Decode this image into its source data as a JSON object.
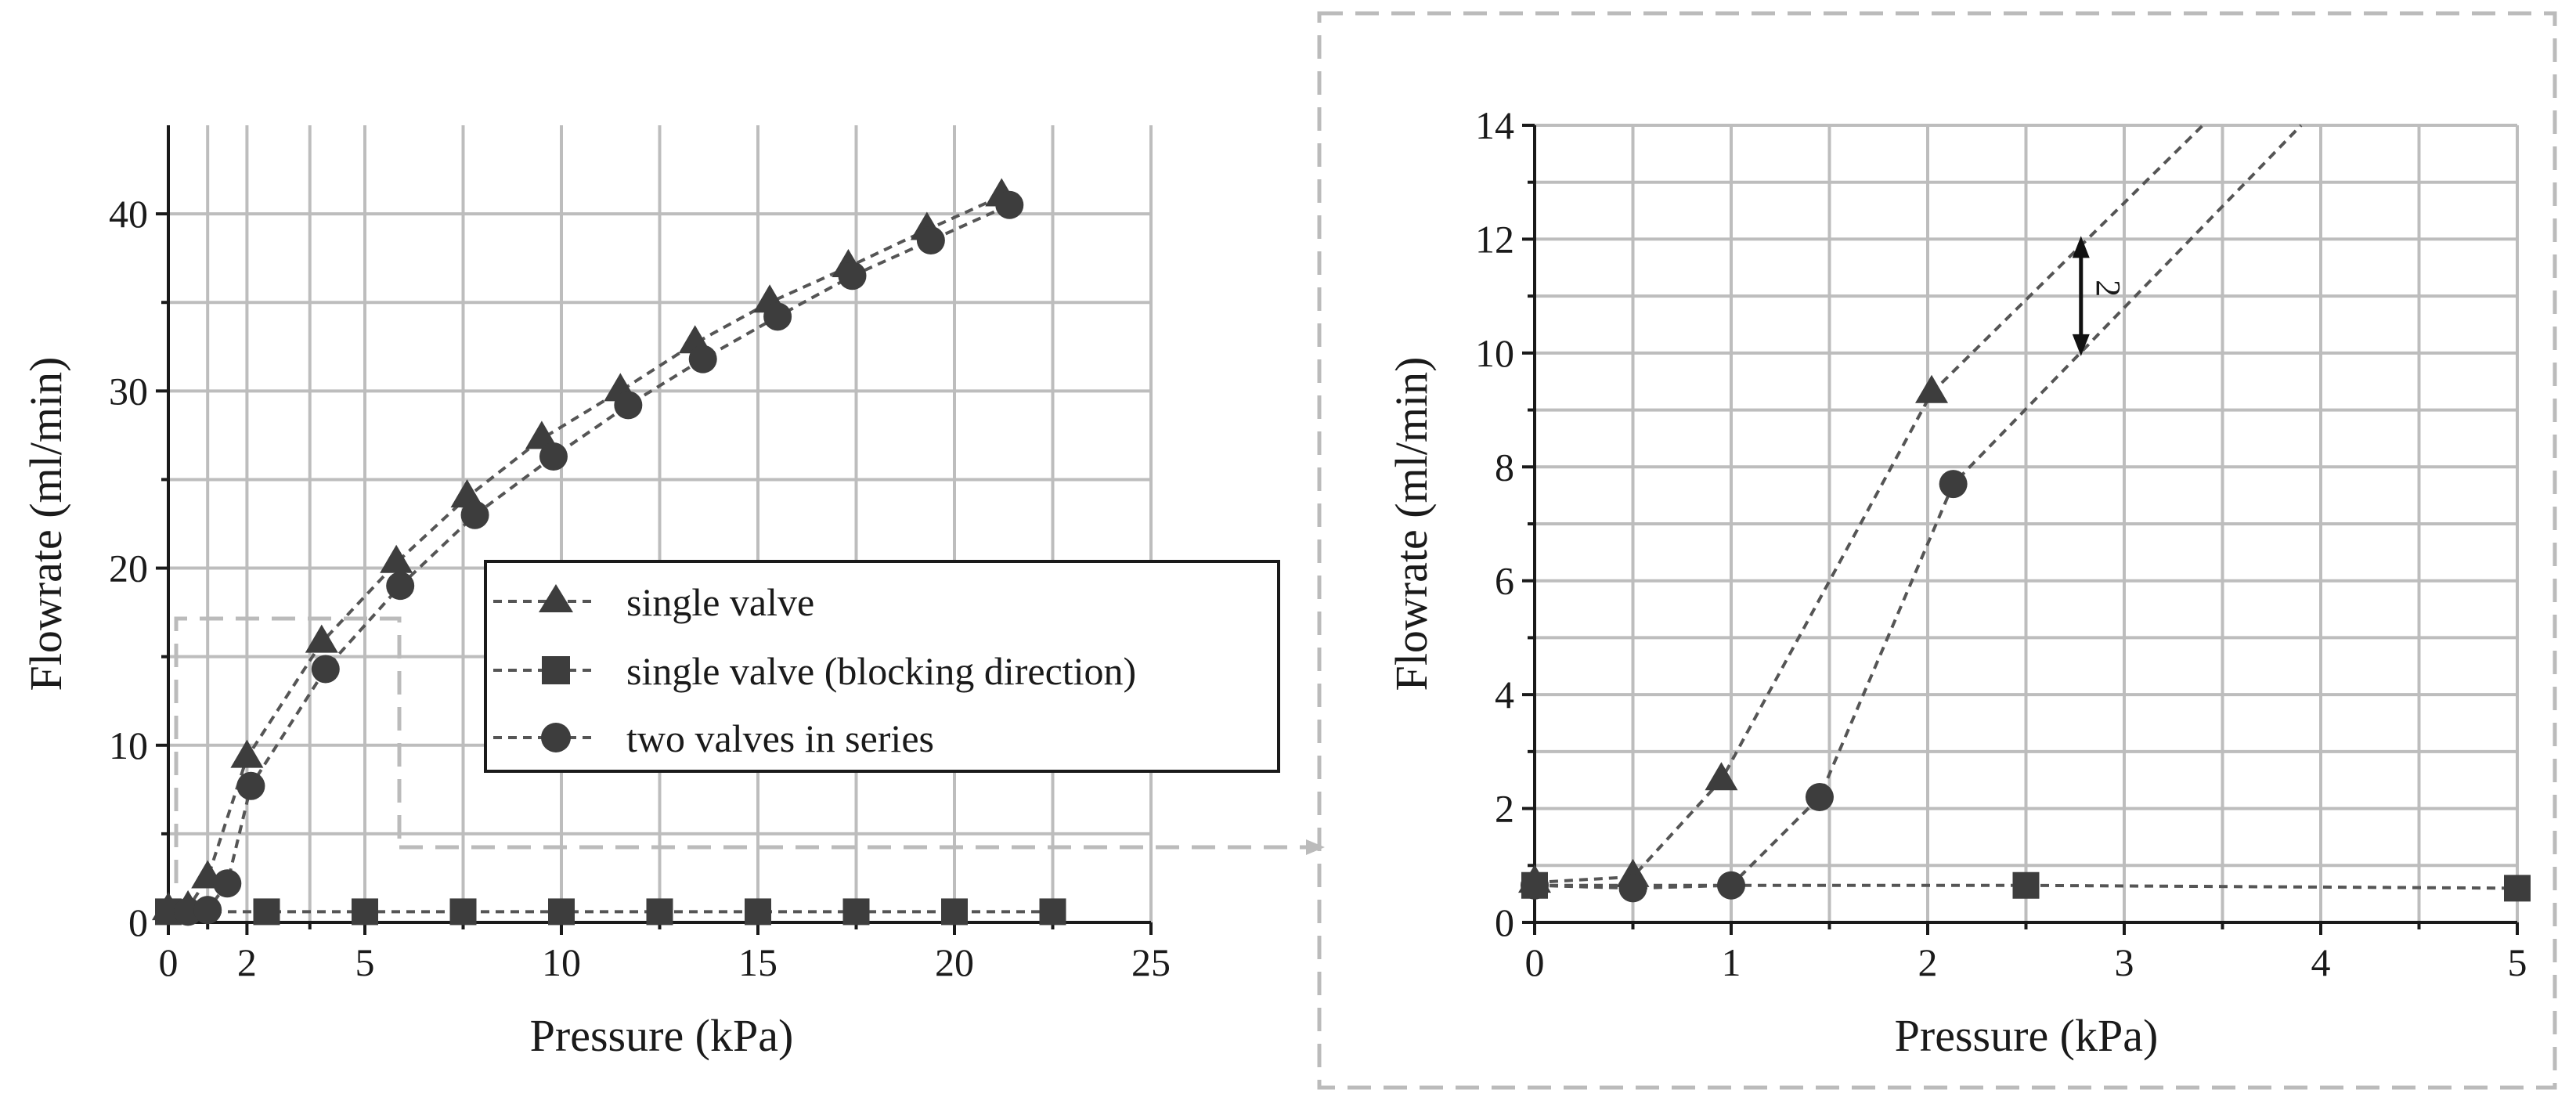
{
  "chart_data": [
    {
      "type": "line",
      "panel": "main",
      "title": "",
      "xlabel": "Pressure (kPa)",
      "ylabel": "Flowrate (ml/min)",
      "xlim": [
        0,
        25
      ],
      "ylim": [
        0,
        45
      ],
      "x_ticks": [
        0,
        1,
        2,
        3.6,
        5,
        7.5,
        10,
        12.5,
        15,
        17.5,
        20,
        22.5,
        25
      ],
      "x_tick_labels": [
        "0",
        "",
        "2",
        "",
        "5",
        "",
        "10",
        "",
        "15",
        "",
        "20",
        "",
        "25"
      ],
      "y_ticks": [
        0,
        5,
        10,
        15,
        20,
        25,
        30,
        35,
        40
      ],
      "y_tick_labels": [
        "0",
        "",
        "10",
        "",
        "20",
        "",
        "30",
        "",
        "40"
      ],
      "grid": true,
      "legend_position": "center-right",
      "series": [
        {
          "name": "single valve",
          "marker": "triangle",
          "x": [
            0,
            0.5,
            1,
            2,
            3.9,
            5.8,
            7.6,
            9.5,
            11.5,
            13.4,
            15.3,
            17.3,
            19.3,
            21.2
          ],
          "y": [
            0.7,
            0.8,
            2.5,
            9.3,
            15.8,
            20.3,
            24.0,
            27.3,
            30.0,
            32.7,
            35.0,
            37.0,
            39.1,
            41.0
          ]
        },
        {
          "name": "single valve (blocking direction)",
          "marker": "square",
          "x": [
            0,
            2.5,
            5,
            7.5,
            10,
            12.5,
            15,
            17.5,
            20,
            22.5
          ],
          "y": [
            0.6,
            0.6,
            0.6,
            0.6,
            0.6,
            0.6,
            0.6,
            0.6,
            0.6,
            0.6
          ]
        },
        {
          "name": "two valves in series",
          "marker": "circle",
          "x": [
            0.5,
            1,
            1.5,
            2.1,
            4.0,
            5.9,
            7.8,
            9.8,
            11.7,
            13.6,
            15.5,
            17.4,
            19.4,
            21.4
          ],
          "y": [
            0.6,
            0.7,
            2.2,
            7.7,
            14.3,
            19.0,
            23.0,
            26.3,
            29.2,
            31.8,
            34.2,
            36.5,
            38.5,
            40.5
          ]
        }
      ]
    },
    {
      "type": "line",
      "panel": "zoom",
      "title": "",
      "xlabel": "Pressure (kPa)",
      "ylabel": "Flowrate (ml/min)",
      "xlim": [
        0,
        5
      ],
      "ylim": [
        0,
        14
      ],
      "x_ticks": [
        0,
        0.5,
        1,
        1.5,
        2,
        2.5,
        3,
        3.5,
        4,
        4.5,
        5
      ],
      "x_tick_labels": [
        "0",
        "",
        "1",
        "",
        "2",
        "",
        "3",
        "",
        "4",
        "",
        "5"
      ],
      "y_ticks": [
        0,
        1,
        2,
        3,
        4,
        5,
        6,
        7,
        8,
        9,
        10,
        11,
        12,
        13,
        14
      ],
      "y_tick_labels": [
        "0",
        "",
        "2",
        "",
        "4",
        "",
        "6",
        "",
        "8",
        "",
        "10",
        "",
        "12",
        "",
        "14"
      ],
      "grid": true,
      "series": [
        {
          "name": "single valve",
          "marker": "triangle",
          "x": [
            0,
            0.5,
            0.95,
            2.02,
            3.4
          ],
          "y": [
            0.7,
            0.8,
            2.5,
            9.3,
            14.0
          ]
        },
        {
          "name": "single valve (blocking direction)",
          "marker": "square",
          "x": [
            0,
            2.5,
            5
          ],
          "y": [
            0.65,
            0.65,
            0.6
          ]
        },
        {
          "name": "two valves in series",
          "marker": "circle",
          "x": [
            0,
            0.5,
            1,
            1.45,
            2.13,
            3.9
          ],
          "y": [
            0.65,
            0.6,
            0.65,
            2.2,
            7.7,
            14.0
          ]
        }
      ],
      "annotations": [
        {
          "text": "2",
          "x": 2.78,
          "y_from": 12.0,
          "y_to": 10.0
        }
      ]
    }
  ],
  "legend": {
    "items": [
      {
        "label": "single valve",
        "marker": "triangle"
      },
      {
        "label": "single valve (blocking direction)",
        "marker": "square"
      },
      {
        "label": "two valves in series",
        "marker": "circle"
      }
    ]
  },
  "colors": {
    "grid": "#bdbdbd",
    "axis": "#1a1a1a",
    "line": "#555555",
    "marker": "#3d3d3d",
    "zoom_box": "#bbbbbb"
  }
}
